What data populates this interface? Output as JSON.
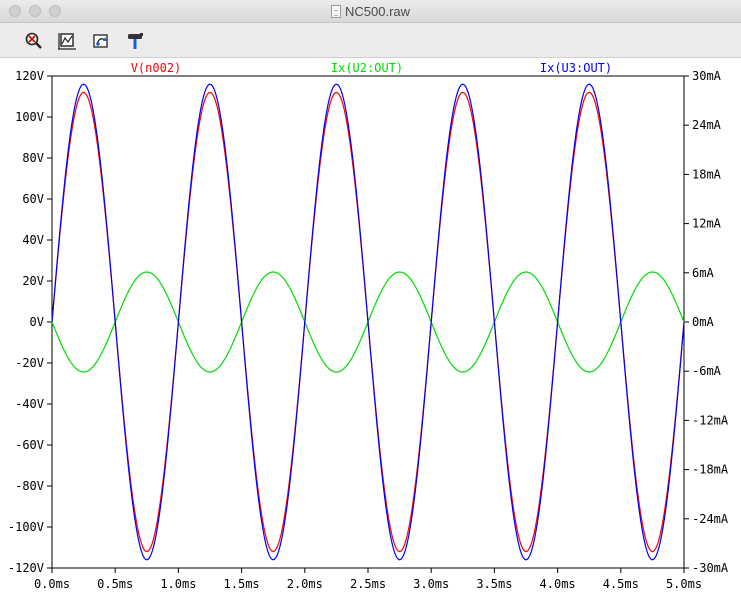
{
  "window": {
    "title": "NC500.raw"
  },
  "toolbar": {
    "tools": [
      {
        "icon": "zoom-out-icon"
      },
      {
        "icon": "zoom-full-icon"
      },
      {
        "icon": "pan-icon"
      },
      {
        "icon": "hammer-icon"
      }
    ]
  },
  "chart_data": {
    "type": "line",
    "title": "",
    "xlabel": "",
    "ylabel": "",
    "grid": false,
    "legend": "top",
    "xlim": [
      0,
      5.0
    ],
    "ylim": [
      -120,
      120
    ],
    "y2lim": [
      -30,
      30
    ],
    "x_ticks": [
      {
        "value": 0.0,
        "label": "0.0ms"
      },
      {
        "value": 0.5,
        "label": "0.5ms"
      },
      {
        "value": 1.0,
        "label": "1.0ms"
      },
      {
        "value": 1.5,
        "label": "1.5ms"
      },
      {
        "value": 2.0,
        "label": "2.0ms"
      },
      {
        "value": 2.5,
        "label": "2.5ms"
      },
      {
        "value": 3.0,
        "label": "3.0ms"
      },
      {
        "value": 3.5,
        "label": "3.5ms"
      },
      {
        "value": 4.0,
        "label": "4.0ms"
      },
      {
        "value": 4.5,
        "label": "4.5ms"
      },
      {
        "value": 5.0,
        "label": "5.0ms"
      }
    ],
    "y_ticks": [
      {
        "value": 120,
        "label": "120V"
      },
      {
        "value": 100,
        "label": "100V"
      },
      {
        "value": 80,
        "label": "80V"
      },
      {
        "value": 60,
        "label": "60V"
      },
      {
        "value": 40,
        "label": "40V"
      },
      {
        "value": 20,
        "label": "20V"
      },
      {
        "value": 0,
        "label": "0V"
      },
      {
        "value": -20,
        "label": "-20V"
      },
      {
        "value": -40,
        "label": "-40V"
      },
      {
        "value": -60,
        "label": "-60V"
      },
      {
        "value": -80,
        "label": "-80V"
      },
      {
        "value": -100,
        "label": "-100V"
      },
      {
        "value": -120,
        "label": "-120V"
      }
    ],
    "y2_ticks": [
      {
        "value": 30,
        "label": "30mA"
      },
      {
        "value": 24,
        "label": "24mA"
      },
      {
        "value": 18,
        "label": "18mA"
      },
      {
        "value": 12,
        "label": "12mA"
      },
      {
        "value": 6,
        "label": "6mA"
      },
      {
        "value": 0,
        "label": "0mA"
      },
      {
        "value": -6,
        "label": "-6mA"
      },
      {
        "value": -12,
        "label": "-12mA"
      },
      {
        "value": -18,
        "label": "-18mA"
      },
      {
        "value": -24,
        "label": "-24mA"
      },
      {
        "value": -30,
        "label": "-30mA"
      }
    ],
    "series": [
      {
        "name": "V(n002)",
        "color": "#ff0000",
        "axis": "left",
        "x": [
          0,
          0.25,
          0.5,
          0.75,
          1.0,
          1.25,
          1.5,
          1.75,
          2.0,
          2.25,
          2.5,
          2.75,
          3.0,
          3.25,
          3.5,
          3.75,
          4.0,
          4.25,
          4.5,
          4.75,
          5.0
        ],
        "y": [
          0,
          112,
          0,
          -112,
          0,
          112,
          0,
          -112,
          0,
          112,
          0,
          -112,
          0,
          112,
          0,
          -112,
          0,
          112,
          0,
          -112,
          0
        ]
      },
      {
        "name": "Ix(U2:OUT)",
        "color": "#00dd00",
        "axis": "right",
        "x": [
          0,
          0.25,
          0.5,
          0.75,
          1.0,
          1.25,
          1.5,
          1.75,
          2.0,
          2.25,
          2.5,
          2.75,
          3.0,
          3.25,
          3.5,
          3.75,
          4.0,
          4.25,
          4.5,
          4.75,
          5.0
        ],
        "y": [
          0,
          -6.1,
          0,
          6.1,
          0,
          -6.1,
          0,
          6.1,
          0,
          -6.1,
          0,
          6.1,
          0,
          -6.1,
          0,
          6.1,
          0,
          -6.1,
          0,
          6.1,
          0
        ]
      },
      {
        "name": "Ix(U3:OUT)",
        "color": "#0000ff",
        "axis": "right",
        "x": [
          0,
          0.25,
          0.5,
          0.75,
          1.0,
          1.25,
          1.5,
          1.75,
          2.0,
          2.25,
          2.5,
          2.75,
          3.0,
          3.25,
          3.5,
          3.75,
          4.0,
          4.25,
          4.5,
          4.75,
          5.0
        ],
        "y": [
          0,
          29,
          0,
          -29,
          0,
          29,
          0,
          -29,
          0,
          29,
          0,
          -29,
          0,
          29,
          0,
          -29,
          0,
          29,
          0,
          -29,
          0
        ]
      }
    ]
  }
}
